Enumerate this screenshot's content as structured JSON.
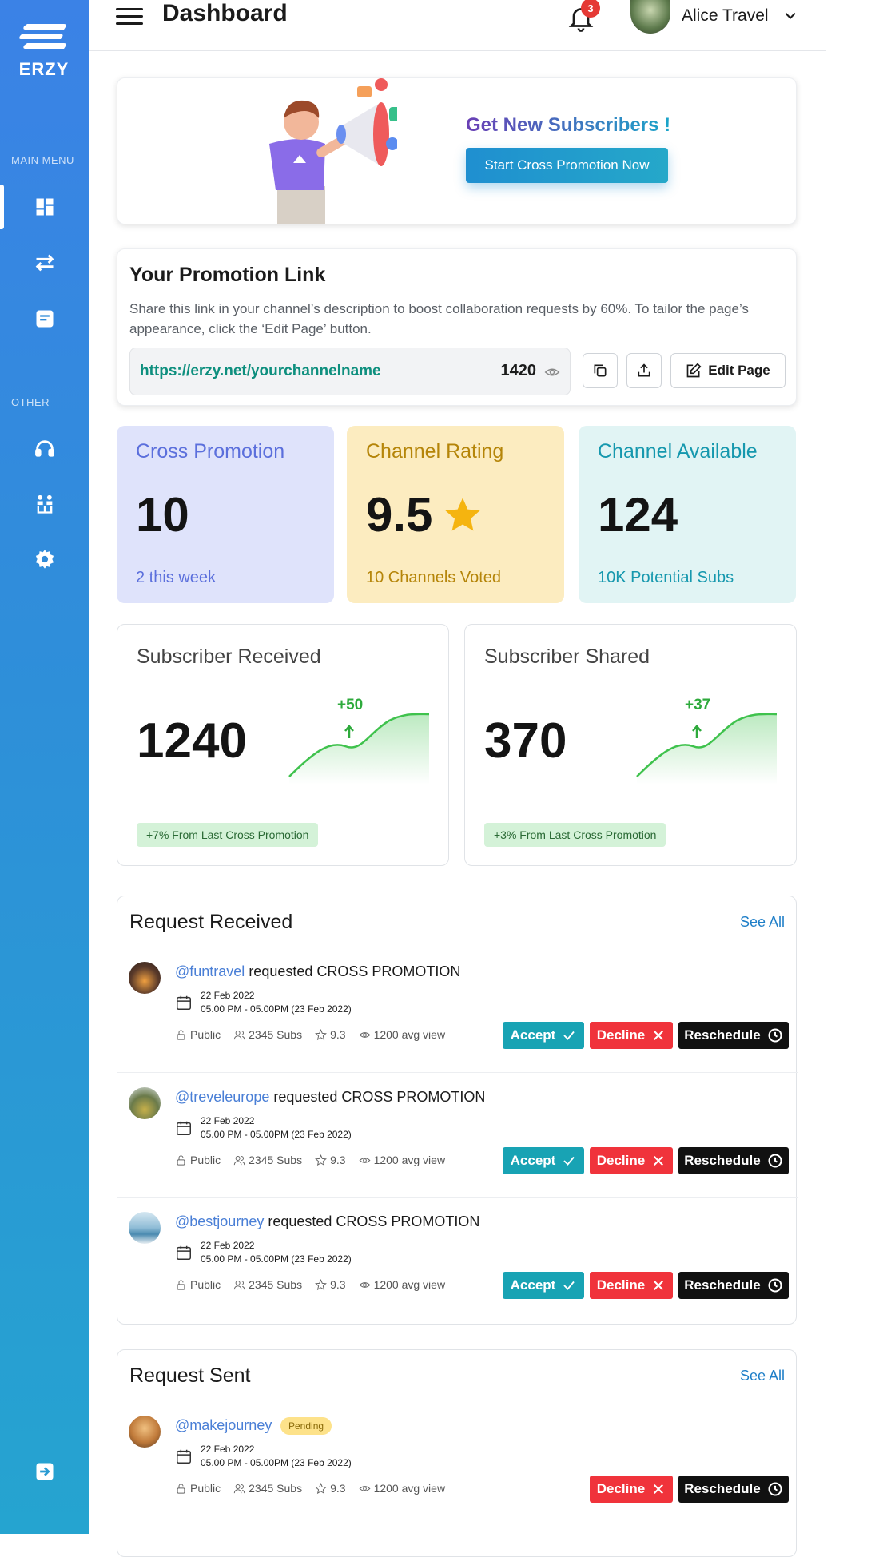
{
  "brand": {
    "name": "ERZY"
  },
  "sidebar": {
    "main_menu_label": "MAIN MENU",
    "other_label": "OTHER",
    "items": [
      {
        "icon": "dashboard-icon"
      },
      {
        "icon": "swap-arrows-icon"
      },
      {
        "icon": "inbox-icon"
      },
      {
        "icon": "headset-icon"
      },
      {
        "icon": "team-icon"
      },
      {
        "icon": "gear-icon"
      },
      {
        "icon": "logout-icon"
      }
    ]
  },
  "header": {
    "title": "Dashboard",
    "notification_count": "3",
    "user_name": "Alice Travel"
  },
  "promo_banner": {
    "title": "Get New Subscribers !",
    "button_label": "Start Cross Promotion Now"
  },
  "promotion_link": {
    "title": "Your Promotion Link",
    "description": "Share this link in your channel’s description to boost collaboration requests by 60%. To tailor the page’s appearance, click the ‘Edit Page’ button.",
    "url": "https://erzy.net/yourchannelname",
    "views": "1420",
    "edit_label": "Edit Page"
  },
  "stats": [
    {
      "title": "Cross Promotion",
      "value": "10",
      "sub": "2 this week",
      "bg": "#dfe3fb",
      "accent": "#5b6fdc"
    },
    {
      "title": "Channel Rating",
      "value": "9.5",
      "sub": "10 Channels Voted",
      "bg": "#fcecc0",
      "accent": "#b58509"
    },
    {
      "title": "Channel Available",
      "value": "124",
      "sub": "10K Potential Subs",
      "bg": "#e1f4f4",
      "accent": "#1698ae"
    }
  ],
  "subscriber_cards": [
    {
      "title": "Subscriber Received",
      "value": "1240",
      "delta": "+50",
      "note": "+7% From Last Cross Promotion"
    },
    {
      "title": "Subscriber Shared",
      "value": "370",
      "delta": "+37",
      "note": "+3% From Last Cross Promotion"
    }
  ],
  "request_received": {
    "title": "Request Received",
    "see_all": "See All",
    "items": [
      {
        "handle": "@funtravel",
        "text": " requested ",
        "type": "CROSS PROMOTION",
        "date": "22 Feb 2022",
        "time": "05.00 PM - 05.00PM (23 Feb 2022)",
        "privacy": "Public",
        "subs": "2345 Subs",
        "rating": "9.3",
        "views": "1200 avg view"
      },
      {
        "handle": "@treveleurope",
        "text": " requested ",
        "type": "CROSS PROMOTION",
        "date": "22 Feb 2022",
        "time": "05.00 PM - 05.00PM (23 Feb 2022)",
        "privacy": "Public",
        "subs": "2345 Subs",
        "rating": "9.3",
        "views": "1200 avg view"
      },
      {
        "handle": "@bestjourney",
        "text": " requested ",
        "type": "CROSS PROMOTION",
        "date": "22 Feb 2022",
        "time": "05.00 PM - 05.00PM (23 Feb 2022)",
        "privacy": "Public",
        "subs": "2345 Subs",
        "rating": "9.3",
        "views": "1200 avg view"
      }
    ],
    "accept_label": "Accept",
    "decline_label": "Decline",
    "reschedule_label": "Reschedule"
  },
  "request_sent": {
    "title": "Request Sent",
    "see_all": "See All",
    "items": [
      {
        "handle": "@makejourney",
        "status": "Pending",
        "date": "22 Feb 2022",
        "time": "05.00 PM - 05.00PM (23 Feb 2022)",
        "privacy": "Public",
        "subs": "2345 Subs",
        "rating": "9.3",
        "views": "1200 avg view"
      }
    ],
    "decline_label": "Decline",
    "reschedule_label": "Reschedule"
  }
}
